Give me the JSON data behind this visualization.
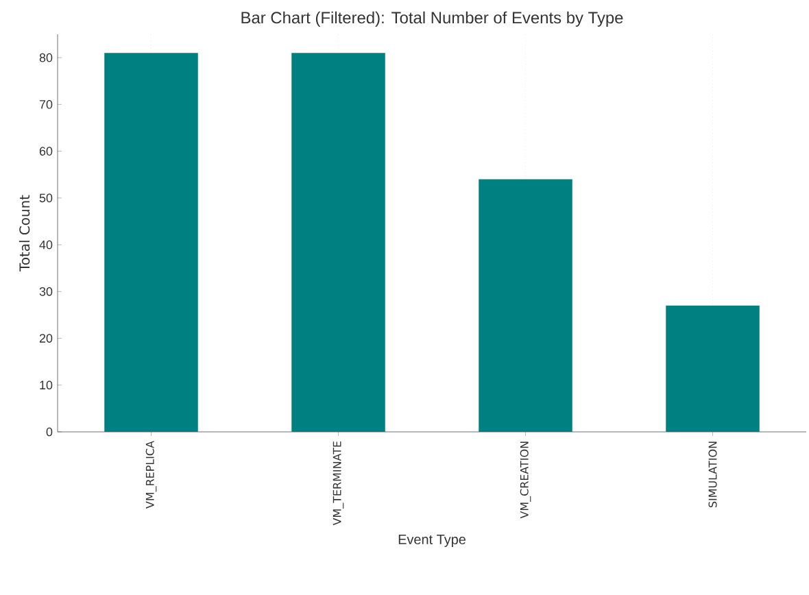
{
  "chart_data": {
    "type": "bar",
    "title": "Bar Chart (Filtered): Total Number of Events by Type",
    "xlabel": "Event Type",
    "ylabel": "Total Count",
    "categories": [
      "VM_REPLICA",
      "VM_TERMINATE",
      "VM_CREATION",
      "SIMULATION"
    ],
    "values": [
      81,
      81,
      54,
      27
    ],
    "color": "#008080",
    "ylim": [
      0,
      85
    ],
    "yticks": [
      0,
      10,
      20,
      30,
      40,
      50,
      60,
      70,
      80
    ],
    "grid": "x"
  }
}
